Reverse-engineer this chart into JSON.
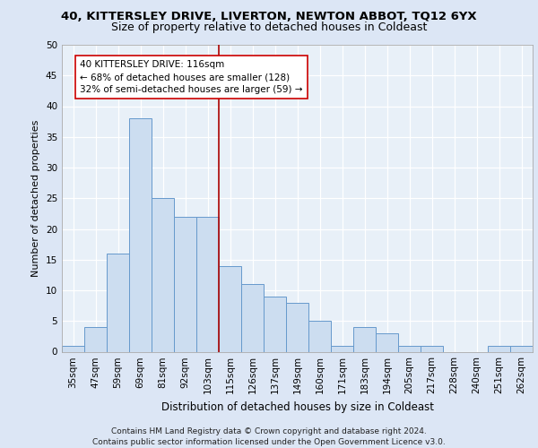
{
  "title1": "40, KITTERSLEY DRIVE, LIVERTON, NEWTON ABBOT, TQ12 6YX",
  "title2": "Size of property relative to detached houses in Coldeast",
  "xlabel": "Distribution of detached houses by size in Coldeast",
  "ylabel": "Number of detached properties",
  "categories": [
    "35sqm",
    "47sqm",
    "59sqm",
    "69sqm",
    "81sqm",
    "92sqm",
    "103sqm",
    "115sqm",
    "126sqm",
    "137sqm",
    "149sqm",
    "160sqm",
    "171sqm",
    "183sqm",
    "194sqm",
    "205sqm",
    "217sqm",
    "228sqm",
    "240sqm",
    "251sqm",
    "262sqm"
  ],
  "values": [
    1,
    4,
    16,
    38,
    25,
    22,
    22,
    14,
    11,
    9,
    8,
    5,
    1,
    4,
    3,
    1,
    1,
    0,
    0,
    1,
    1
  ],
  "bar_color": "#ccddf0",
  "bar_edge_color": "#6699cc",
  "vline_color": "#aa0000",
  "vline_x": 7.0,
  "annotation_text": "40 KITTERSLEY DRIVE: 116sqm\n← 68% of detached houses are smaller (128)\n32% of semi-detached houses are larger (59) →",
  "annotation_box_facecolor": "#ffffff",
  "annotation_box_edgecolor": "#cc0000",
  "ylim": [
    0,
    50
  ],
  "yticks": [
    0,
    5,
    10,
    15,
    20,
    25,
    30,
    35,
    40,
    45,
    50
  ],
  "footer": "Contains HM Land Registry data © Crown copyright and database right 2024.\nContains public sector information licensed under the Open Government Licence v3.0.",
  "background_color": "#dce6f5",
  "plot_background_color": "#e8f0f8",
  "grid_color": "#ffffff",
  "title1_fontsize": 9.5,
  "title2_fontsize": 9,
  "xlabel_fontsize": 8.5,
  "ylabel_fontsize": 8,
  "tick_fontsize": 7.5,
  "annotation_fontsize": 7.5,
  "footer_fontsize": 6.5
}
